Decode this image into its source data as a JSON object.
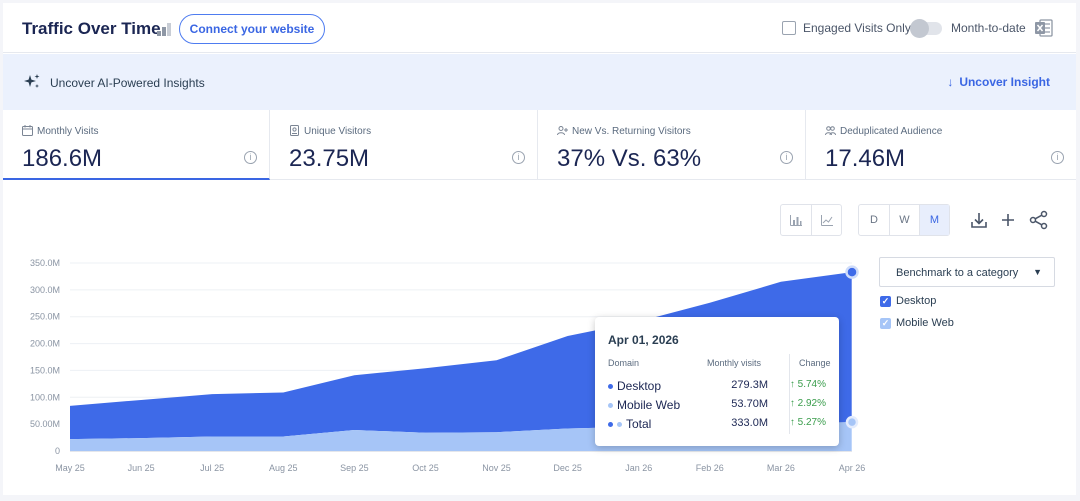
{
  "header": {
    "title": "Traffic Over Time",
    "connect_button": "Connect your website",
    "engaged_visits_label": "Engaged Visits Only",
    "month_to_date_label": "Month-to-date"
  },
  "insight_bar": {
    "text": "Uncover AI-Powered Insights",
    "link": "Uncover Insight"
  },
  "metrics": [
    {
      "label": "Monthly Visits",
      "value": "186.6M",
      "icon": "calendar-icon",
      "active": true
    },
    {
      "label": "Unique Visitors",
      "value": "23.75M",
      "icon": "id-badge-icon",
      "active": false
    },
    {
      "label": "New Vs. Returning Visitors",
      "value": "37% Vs. 63%",
      "icon": "user-plus-icon",
      "active": false
    },
    {
      "label": "Deduplicated Audience",
      "value": "17.46M",
      "icon": "users-icon",
      "active": false
    }
  ],
  "toolbar": {
    "granularity": [
      "D",
      "W",
      "M"
    ],
    "selected_granularity": "M",
    "chart_types": [
      "bar-chart-icon",
      "line-chart-icon"
    ],
    "actions": [
      "download-icon",
      "plus-icon",
      "share-icon"
    ]
  },
  "benchmark": {
    "label": "Benchmark to a category"
  },
  "legend": [
    {
      "name": "Desktop",
      "color": "#3e6ae8"
    },
    {
      "name": "Mobile Web",
      "color": "#a6c5f7"
    }
  ],
  "tooltip": {
    "date": "Apr 01, 2026",
    "col_domain": "Domain",
    "col_visits": "Monthly visits",
    "col_change": "Change",
    "rows": [
      {
        "name": "Desktop",
        "value": "279.3M",
        "change": "5.74%"
      },
      {
        "name": "Mobile Web",
        "value": "53.70M",
        "change": "2.92%"
      },
      {
        "name": "Total",
        "value": "333.0M",
        "change": "5.27%"
      }
    ]
  },
  "chart_data": {
    "type": "area",
    "stacked": true,
    "categories": [
      "May 25",
      "Jun 25",
      "Jul 25",
      "Aug 25",
      "Sep 25",
      "Oct 25",
      "Nov 25",
      "Dec 25",
      "Jan 26",
      "Feb 26",
      "Mar 26",
      "Apr 26"
    ],
    "series": [
      {
        "name": "Mobile Web",
        "values": [
          22,
          24,
          27,
          27,
          39,
          34,
          35,
          42,
          45,
          48,
          51,
          53.7
        ]
      },
      {
        "name": "Desktop",
        "values": [
          62,
          71,
          79,
          82,
          102,
          120,
          134,
          172,
          196,
          228,
          264,
          279.3
        ]
      }
    ],
    "y_ticks": [
      "0",
      "50.00M",
      "100.0M",
      "150.0M",
      "200.0M",
      "250.0M",
      "300.0M",
      "350.0M"
    ],
    "ylim": [
      0,
      350
    ],
    "grid": true
  }
}
